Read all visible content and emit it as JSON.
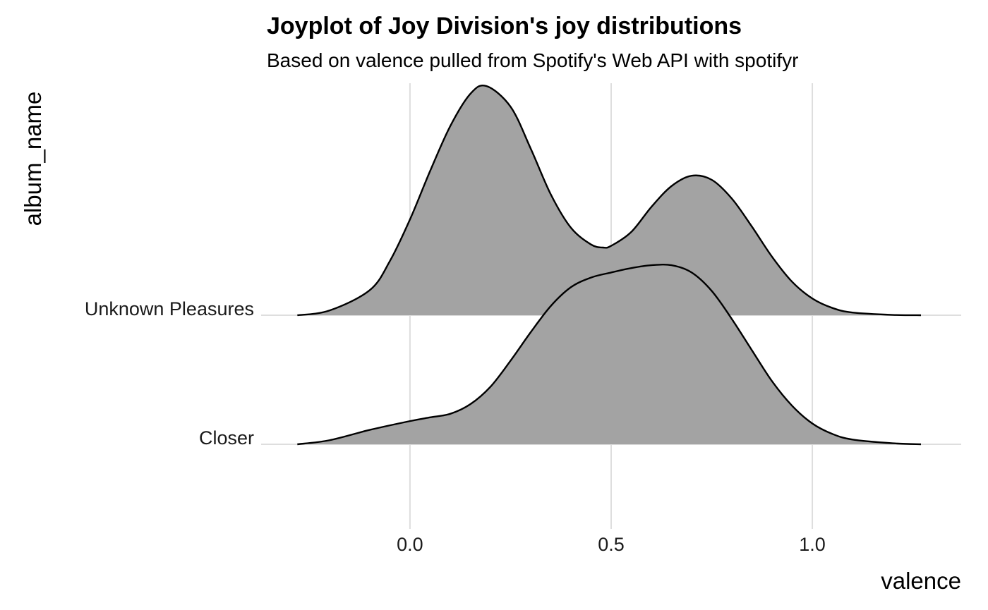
{
  "chart_data": {
    "type": "ridgeline",
    "title": "Joyplot of Joy Division's joy distributions",
    "subtitle": "Based on valence pulled from Spotify's Web API with spotifyr",
    "xlabel": "valence",
    "ylabel": "album_name",
    "xlim": [
      -0.37,
      1.37
    ],
    "x_ticks": [
      0.0,
      0.5,
      1.0
    ],
    "x_tick_labels": [
      "0.0",
      "0.5",
      "1.0"
    ],
    "grid": true,
    "fill_color": "#a3a3a3",
    "line_color": "#000000",
    "grid_color": "#dedede",
    "series": [
      {
        "name": "Closer",
        "x": [
          -0.28,
          -0.2,
          -0.1,
          0.0,
          0.05,
          0.1,
          0.15,
          0.2,
          0.25,
          0.3,
          0.35,
          0.4,
          0.45,
          0.5,
          0.55,
          0.6,
          0.65,
          0.7,
          0.75,
          0.8,
          0.85,
          0.9,
          0.95,
          1.0,
          1.05,
          1.1,
          1.2,
          1.27
        ],
        "density": [
          0.0,
          0.024,
          0.085,
          0.137,
          0.159,
          0.18,
          0.237,
          0.34,
          0.494,
          0.662,
          0.817,
          0.928,
          0.985,
          1.015,
          1.041,
          1.058,
          1.058,
          1.015,
          0.906,
          0.74,
          0.555,
          0.372,
          0.227,
          0.123,
          0.061,
          0.028,
          0.006,
          0.0
        ]
      },
      {
        "name": "Unknown Pleasures",
        "x": [
          -0.28,
          -0.2,
          -0.1,
          -0.05,
          0.0,
          0.05,
          0.1,
          0.15,
          0.19,
          0.25,
          0.3,
          0.35,
          0.4,
          0.45,
          0.48,
          0.5,
          0.55,
          0.6,
          0.65,
          0.7,
          0.75,
          0.8,
          0.85,
          0.9,
          0.95,
          1.0,
          1.05,
          1.1,
          1.2,
          1.27
        ],
        "density": [
          0.0,
          0.028,
          0.148,
          0.32,
          0.566,
          0.852,
          1.117,
          1.308,
          1.354,
          1.232,
          0.985,
          0.714,
          0.517,
          0.418,
          0.4,
          0.41,
          0.492,
          0.64,
          0.763,
          0.824,
          0.8,
          0.689,
          0.523,
          0.345,
          0.197,
          0.099,
          0.043,
          0.016,
          0.002,
          0.0
        ]
      }
    ]
  }
}
